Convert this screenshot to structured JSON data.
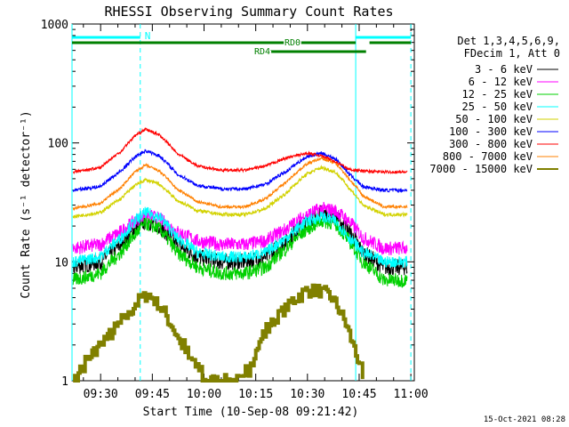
{
  "chart_data": {
    "type": "line",
    "title": "RHESSI Observing Summary Count Rates",
    "xlabel": "Start Time (10-Sep-08 09:21:42)",
    "ylabel": "Count Rate (s⁻¹ detector⁻¹)",
    "y_scale": "log",
    "ylim": [
      1,
      1000
    ],
    "y_ticks": [
      "1",
      "10",
      "100",
      "1000"
    ],
    "xlim": [
      "09:21:42",
      "11:01:00"
    ],
    "x_ticks": [
      "09:30",
      "09:45",
      "10:00",
      "10:15",
      "10:30",
      "10:45",
      "11:00"
    ],
    "grid": false,
    "legend_header": [
      "Det 1,3,4,5,6,9,",
      "FDecim 1, Att 0"
    ],
    "legend_placement": "right",
    "footer_date": "15-Oct-2021 08:28",
    "series": [
      {
        "name": "3 - 6 keV",
        "color": "#000000",
        "x": [
          "09:22",
          "09:30",
          "09:36",
          "09:40",
          "09:43",
          "09:47",
          "09:52",
          "09:58",
          "10:05",
          "10:12",
          "10:18",
          "10:24",
          "10:30",
          "10:34",
          "10:38",
          "10:42",
          "10:46",
          "10:52",
          "10:59"
        ],
        "values": [
          9,
          10,
          14,
          19,
          22,
          20,
          14,
          11,
          10,
          10,
          11,
          15,
          22,
          26,
          24,
          18,
          12,
          9,
          9
        ]
      },
      {
        "name": "6 - 12 keV",
        "color": "#ff00ff",
        "x": [
          "09:22",
          "09:30",
          "09:36",
          "09:40",
          "09:43",
          "09:47",
          "09:52",
          "09:58",
          "10:05",
          "10:12",
          "10:18",
          "10:24",
          "10:30",
          "10:34",
          "10:38",
          "10:42",
          "10:46",
          "10:52",
          "10:59"
        ],
        "values": [
          13,
          14,
          18,
          22,
          25,
          23,
          18,
          15,
          14,
          14,
          15,
          19,
          25,
          28,
          27,
          22,
          16,
          13,
          13
        ]
      },
      {
        "name": "12 - 25 keV",
        "color": "#00d000",
        "x": [
          "09:22",
          "09:30",
          "09:36",
          "09:40",
          "09:43",
          "09:47",
          "09:52",
          "09:58",
          "10:05",
          "10:12",
          "10:18",
          "10:24",
          "10:30",
          "10:34",
          "10:38",
          "10:42",
          "10:46",
          "10:52",
          "10:59"
        ],
        "values": [
          7,
          8,
          12,
          17,
          21,
          19,
          12,
          9,
          8,
          8,
          9,
          13,
          19,
          22,
          21,
          15,
          10,
          7,
          7
        ]
      },
      {
        "name": "25 - 50 keV",
        "color": "#00ffff",
        "x": [
          "09:22",
          "09:30",
          "09:36",
          "09:40",
          "09:43",
          "09:47",
          "09:52",
          "09:58",
          "10:05",
          "10:12",
          "10:18",
          "10:24",
          "10:30",
          "10:34",
          "10:38",
          "10:42",
          "10:46",
          "10:52",
          "10:59"
        ],
        "values": [
          10,
          11,
          16,
          22,
          26,
          24,
          16,
          12,
          11,
          11,
          12,
          16,
          22,
          24,
          22,
          16,
          12,
          10,
          10
        ]
      },
      {
        "name": "50 - 100 keV",
        "color": "#d2d200",
        "x": [
          "09:22",
          "09:30",
          "09:36",
          "09:40",
          "09:43",
          "09:47",
          "09:52",
          "09:58",
          "10:05",
          "10:12",
          "10:18",
          "10:24",
          "10:30",
          "10:34",
          "10:38",
          "10:42",
          "10:46",
          "10:52",
          "10:59"
        ],
        "values": [
          24,
          26,
          34,
          44,
          49,
          45,
          33,
          27,
          25,
          25,
          28,
          38,
          55,
          62,
          57,
          42,
          30,
          25,
          25
        ]
      },
      {
        "name": "100 - 300 keV",
        "color": "#0000ff",
        "x": [
          "09:22",
          "09:30",
          "09:36",
          "09:40",
          "09:43",
          "09:47",
          "09:52",
          "09:58",
          "10:05",
          "10:12",
          "10:18",
          "10:24",
          "10:30",
          "10:34",
          "10:38",
          "10:42",
          "10:46",
          "10:52",
          "10:59"
        ],
        "values": [
          40,
          43,
          58,
          76,
          86,
          78,
          55,
          44,
          41,
          41,
          45,
          58,
          77,
          82,
          74,
          55,
          43,
          40,
          40
        ]
      },
      {
        "name": "300 - 800 keV",
        "color": "#ff0000",
        "x": [
          "09:22",
          "09:30",
          "09:36",
          "09:40",
          "09:43",
          "09:47",
          "09:52",
          "09:58",
          "10:05",
          "10:12",
          "10:18",
          "10:24",
          "10:30",
          "10:34",
          "10:38",
          "10:42",
          "10:46",
          "10:52",
          "10:59"
        ],
        "values": [
          57,
          62,
          85,
          115,
          130,
          117,
          82,
          64,
          59,
          59,
          64,
          75,
          82,
          78,
          70,
          60,
          58,
          57,
          57
        ]
      },
      {
        "name": "800 - 7000 keV",
        "color": "#ff8000",
        "x": [
          "09:22",
          "09:30",
          "09:36",
          "09:40",
          "09:43",
          "09:47",
          "09:52",
          "09:58",
          "10:05",
          "10:12",
          "10:18",
          "10:24",
          "10:30",
          "10:34",
          "10:38",
          "10:42",
          "10:46",
          "10:52",
          "10:59"
        ],
        "values": [
          28,
          31,
          42,
          57,
          65,
          58,
          41,
          32,
          29,
          29,
          34,
          47,
          67,
          74,
          68,
          50,
          36,
          29,
          29
        ]
      },
      {
        "name": "7000 - 15000 keV",
        "color": "#808000",
        "x": [
          "09:22",
          "09:27",
          "09:33",
          "09:38",
          "09:41",
          "09:44",
          "09:47",
          "09:50",
          "09:53",
          "09:56",
          "10:00",
          "10:11",
          "10:14",
          "10:17",
          "10:21",
          "10:25",
          "10:29",
          "10:33",
          "10:37",
          "10:40",
          "10:43",
          "10:46"
        ],
        "values": [
          1,
          1.6,
          2.5,
          3.6,
          4.8,
          5.3,
          4.2,
          3.1,
          2.1,
          1.5,
          1,
          1,
          1.5,
          2.4,
          3.4,
          4.5,
          5.6,
          5.8,
          5.0,
          3.5,
          2.1,
          1
        ]
      }
    ],
    "annotations": {
      "night_intervals": [
        [
          "09:21:42",
          "09:41:30"
        ],
        [
          "10:44:00",
          "11:00:00"
        ]
      ],
      "night_label": "N",
      "saa_dashed_lines": [
        "09:41:30",
        "11:00:00"
      ],
      "solid_cyan_line": "10:44:00",
      "decimation_bars": [
        {
          "label": "RD0",
          "color": "#008000",
          "intervals": [
            [
              "09:21:42",
              "10:44:00"
            ],
            [
              "10:48:00",
              "11:00:00"
            ]
          ]
        },
        {
          "label": "RD4",
          "color": "#008000",
          "intervals": [
            [
              "10:18:00",
              "10:47:00"
            ]
          ]
        }
      ]
    }
  }
}
